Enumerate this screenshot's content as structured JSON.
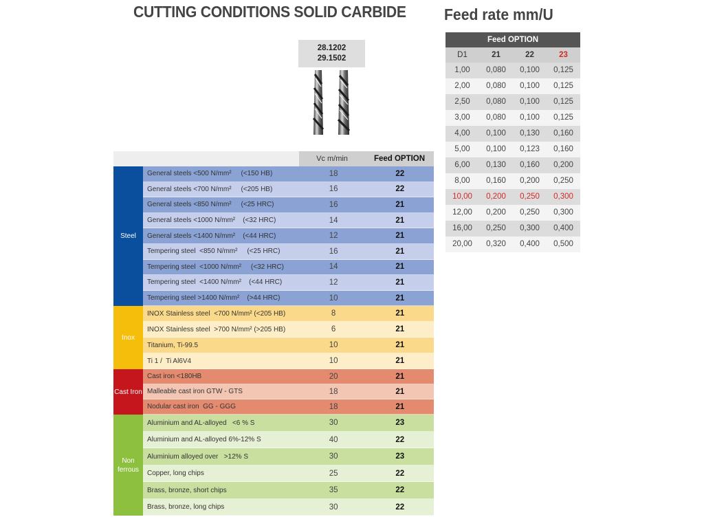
{
  "main_title": "CUTTING CONDITIONS SOLID CARBIDE",
  "tool": {
    "code1": "28.1202",
    "code2": "29.1502"
  },
  "columns": {
    "vc": "Vc  m/min",
    "feed": "Feed OPTION"
  },
  "groups": [
    {
      "label": "Steel",
      "color": "#0a4f9e",
      "rows": [
        {
          "material": "General steels <500 N/mm²     (<150 HB)",
          "vc": "18",
          "feed": "22"
        },
        {
          "material": "General steels <700 N/mm²     (<205 HB)",
          "vc": "16",
          "feed": "22"
        },
        {
          "material": "General steels <850 N/mm²     (<25 HRC)",
          "vc": "16",
          "feed": "21"
        },
        {
          "material": "General steels <1000 N/mm²    (<32 HRC)",
          "vc": "14",
          "feed": "21"
        },
        {
          "material": "General steels <1400 N/mm²    (<44 HRC)",
          "vc": "12",
          "feed": "21"
        },
        {
          "material": "Tempering steel  <850 N/mm²     (<25 HRC)",
          "vc": "16",
          "feed": "21"
        },
        {
          "material": "Tempering steel  <1000 N/mm²     (<32 HRC)",
          "vc": "14",
          "feed": "21"
        },
        {
          "material": "Tempering steel  <1400 N/mm²    (<44 HRC)",
          "vc": "12",
          "feed": "21"
        },
        {
          "material": "Tempering steel >1400 N/mm²    (>44 HRC)",
          "vc": "10",
          "feed": "21"
        }
      ]
    },
    {
      "label": "Inox",
      "color": "#f5be0b",
      "rows": [
        {
          "material": "INOX Stainless steel  <700 N/mm² (<205 HB)",
          "vc": "8",
          "feed": "21"
        },
        {
          "material": "INOX Stainless steel  >700 N/mm² (>205 HB)",
          "vc": "6",
          "feed": "21"
        },
        {
          "material": "Titanium, Ti-99.5",
          "vc": "10",
          "feed": "21"
        },
        {
          "material": "Ti 1 /  Ti Al6V4",
          "vc": "10",
          "feed": "21"
        }
      ]
    },
    {
      "label": "Cast Iron",
      "color": "#c4161c",
      "rows": [
        {
          "material": "Cast iron <180HB",
          "vc": "20",
          "feed": "21"
        },
        {
          "material": "Malleable cast iron GTW - GTS",
          "vc": "18",
          "feed": "21"
        },
        {
          "material": "Nodular cast iron  GG - GGG",
          "vc": "18",
          "feed": "21"
        }
      ]
    },
    {
      "label": "Non ferrous",
      "color": "#8dc03f",
      "rows": [
        {
          "material": "Aluminium and AL-alloyed   <6 % S",
          "vc": "30",
          "feed": "23"
        },
        {
          "material": "Aluminium and AL-alloyed 6%-12% S",
          "vc": "40",
          "feed": "22"
        },
        {
          "material": "Aluminium alloyed over   >12% S",
          "vc": "30",
          "feed": "23"
        },
        {
          "material": "Copper, long chips",
          "vc": "25",
          "feed": "22"
        },
        {
          "material": "Brass, bronze, short chips",
          "vc": "35",
          "feed": "22"
        },
        {
          "material": "Brass, bronze, long chips",
          "vc": "30",
          "feed": "22"
        }
      ]
    }
  ],
  "feed_table": {
    "title": "Feed rate mm/U",
    "header": "Feed OPTION",
    "columns": [
      "D1",
      "21",
      "22",
      "23"
    ],
    "rows": [
      [
        "1,00",
        "0,080",
        "0,100",
        "0,125"
      ],
      [
        "2,00",
        "0,080",
        "0,100",
        "0,125"
      ],
      [
        "2,50",
        "0,080",
        "0,100",
        "0,125"
      ],
      [
        "3,00",
        "0,080",
        "0,100",
        "0,125"
      ],
      [
        "4,00",
        "0,100",
        "0,130",
        "0,160"
      ],
      [
        "5,00",
        "0,100",
        "0,123",
        "0,160"
      ],
      [
        "6,00",
        "0,130",
        "0,160",
        "0,200"
      ],
      [
        "8,00",
        "0,160",
        "0,200",
        "0,250"
      ],
      [
        "10,00",
        "0,200",
        "0,250",
        "0,300"
      ],
      [
        "12,00",
        "0,200",
        "0,250",
        "0,300"
      ],
      [
        "16,00",
        "0,250",
        "0,300",
        "0,400"
      ],
      [
        "20,00",
        "0,320",
        "0,400",
        "0,500"
      ]
    ],
    "highlight_row": 8,
    "highlight_color": "#d62828"
  }
}
